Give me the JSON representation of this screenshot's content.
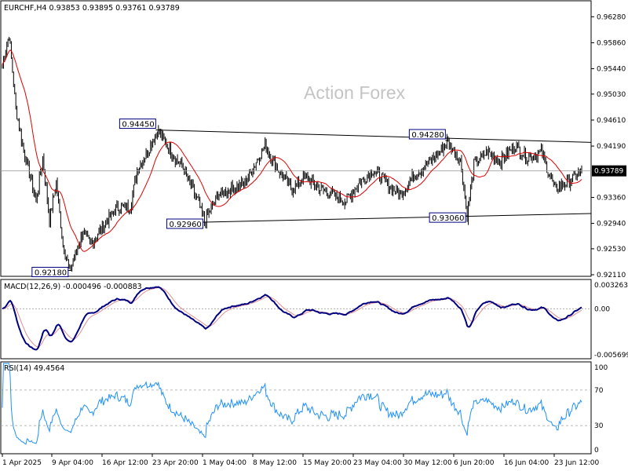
{
  "colors": {
    "background": "#ffffff",
    "border": "#000000",
    "price_bars": "#000000",
    "moving_average": "#e00000",
    "macd_line": "#000080",
    "macd_signal": "#e09090",
    "rsi_line": "#1e90ff",
    "level_box_border": "#000080",
    "current_price_box": "#000000",
    "current_price_text": "#ffffff",
    "guide_lines": "#a0a0a0",
    "watermark": "#c4c4c4"
  },
  "chart_data": [
    {
      "type": "candlestick-ohlc",
      "panel": "price",
      "title": "EURCHF,H4  0.93853 0.93895 0.93761 0.93789",
      "watermark": "Action Forex",
      "ylim": [
        0.9211,
        0.965
      ],
      "y_ticks": [
        "0.96280",
        "0.95860",
        "0.95440",
        "0.95030",
        "0.94610",
        "0.94190",
        "0.93360",
        "0.92940",
        "0.92530",
        "0.92110"
      ],
      "current_price": "0.93789",
      "x_tick_labels": [
        "1 Apr 2025",
        "9 Apr 04:00",
        "16 Apr 12:00",
        "23 Apr 20:00",
        "1 May 04:00",
        "8 May 12:00",
        "15 May 20:00",
        "23 May 04:00",
        "30 May 12:00",
        "6 Jun 20:00",
        "16 Jun 04:00",
        "23 Jun 12:00"
      ],
      "x_start": "2025-04-01",
      "x_end": "2025-06-26",
      "price_anchors": [
        [
          "2025-04-01",
          0.955
        ],
        [
          "2025-04-02",
          0.96
        ],
        [
          "2025-04-03",
          0.948
        ],
        [
          "2025-04-04",
          0.942
        ],
        [
          "2025-04-06",
          0.933
        ],
        [
          "2025-04-07",
          0.94
        ],
        [
          "2025-04-08",
          0.93
        ],
        [
          "2025-04-09",
          0.936
        ],
        [
          "2025-04-10",
          0.926
        ],
        [
          "2025-04-11",
          0.9218
        ],
        [
          "2025-04-13",
          0.928
        ],
        [
          "2025-04-14",
          0.926
        ],
        [
          "2025-04-16",
          0.929
        ],
        [
          "2025-04-18",
          0.932
        ],
        [
          "2025-04-20",
          0.932
        ],
        [
          "2025-04-21",
          0.938
        ],
        [
          "2025-04-23",
          0.942
        ],
        [
          "2025-04-24",
          0.9445
        ],
        [
          "2025-04-26",
          0.941
        ],
        [
          "2025-04-28",
          0.938
        ],
        [
          "2025-04-30",
          0.933
        ],
        [
          "2025-05-01",
          0.9296
        ],
        [
          "2025-05-03",
          0.934
        ],
        [
          "2025-05-05",
          0.935
        ],
        [
          "2025-05-07",
          0.936
        ],
        [
          "2025-05-09",
          0.94
        ],
        [
          "2025-05-10",
          0.942
        ],
        [
          "2025-05-12",
          0.938
        ],
        [
          "2025-05-14",
          0.935
        ],
        [
          "2025-05-16",
          0.937
        ],
        [
          "2025-05-18",
          0.935
        ],
        [
          "2025-05-20",
          0.934
        ],
        [
          "2025-05-22",
          0.933
        ],
        [
          "2025-05-24",
          0.936
        ],
        [
          "2025-05-26",
          0.938
        ],
        [
          "2025-05-28",
          0.936
        ],
        [
          "2025-05-30",
          0.934
        ],
        [
          "2025-06-01",
          0.937
        ],
        [
          "2025-06-03",
          0.939
        ],
        [
          "2025-06-05",
          0.941
        ],
        [
          "2025-06-06",
          0.9428
        ],
        [
          "2025-06-08",
          0.9395
        ],
        [
          "2025-06-09",
          0.9306
        ],
        [
          "2025-06-10",
          0.939
        ],
        [
          "2025-06-12",
          0.941
        ],
        [
          "2025-06-14",
          0.9395
        ],
        [
          "2025-06-16",
          0.942
        ],
        [
          "2025-06-18",
          0.94
        ],
        [
          "2025-06-20",
          0.941
        ],
        [
          "2025-06-22",
          0.935
        ],
        [
          "2025-06-24",
          0.936
        ],
        [
          "2025-06-26",
          0.9379
        ]
      ],
      "levels": [
        {
          "label": "0.94450",
          "value": 0.9445,
          "date": "2025-04-24",
          "anchor": "above-left"
        },
        {
          "label": "0.92960",
          "value": 0.9296,
          "date": "2025-05-01",
          "anchor": "below-left"
        },
        {
          "label": "0.94280",
          "value": 0.9428,
          "date": "2025-06-06",
          "anchor": "above-left"
        },
        {
          "label": "0.93060",
          "value": 0.9306,
          "date": "2025-06-09",
          "anchor": "below-left"
        },
        {
          "label": "0.92180",
          "value": 0.9218,
          "date": "2025-04-11",
          "anchor": "below-left"
        }
      ],
      "trendlines": [
        {
          "from": [
            "2025-04-24",
            0.9445
          ],
          "to": [
            "2025-06-26",
            0.9425
          ]
        },
        {
          "from": [
            "2025-05-01",
            0.9296
          ],
          "to": [
            "2025-06-26",
            0.931
          ]
        }
      ],
      "moving_average": "smoothed close"
    },
    {
      "type": "line",
      "panel": "macd",
      "title": "MACD(12,26,9) -0.000496 -0.000883",
      "ylim": [
        -0.005699,
        0.003263
      ],
      "y_ticks": [
        "0.003263",
        "0.00",
        "-0.005699"
      ],
      "series": [
        "macd",
        "signal"
      ]
    },
    {
      "type": "line",
      "panel": "rsi",
      "title": "RSI(14) 49.4564",
      "ylim": [
        0,
        100
      ],
      "y_ticks": [
        "100",
        "70",
        "30",
        "0"
      ],
      "guide_levels": [
        70,
        30
      ]
    }
  ]
}
